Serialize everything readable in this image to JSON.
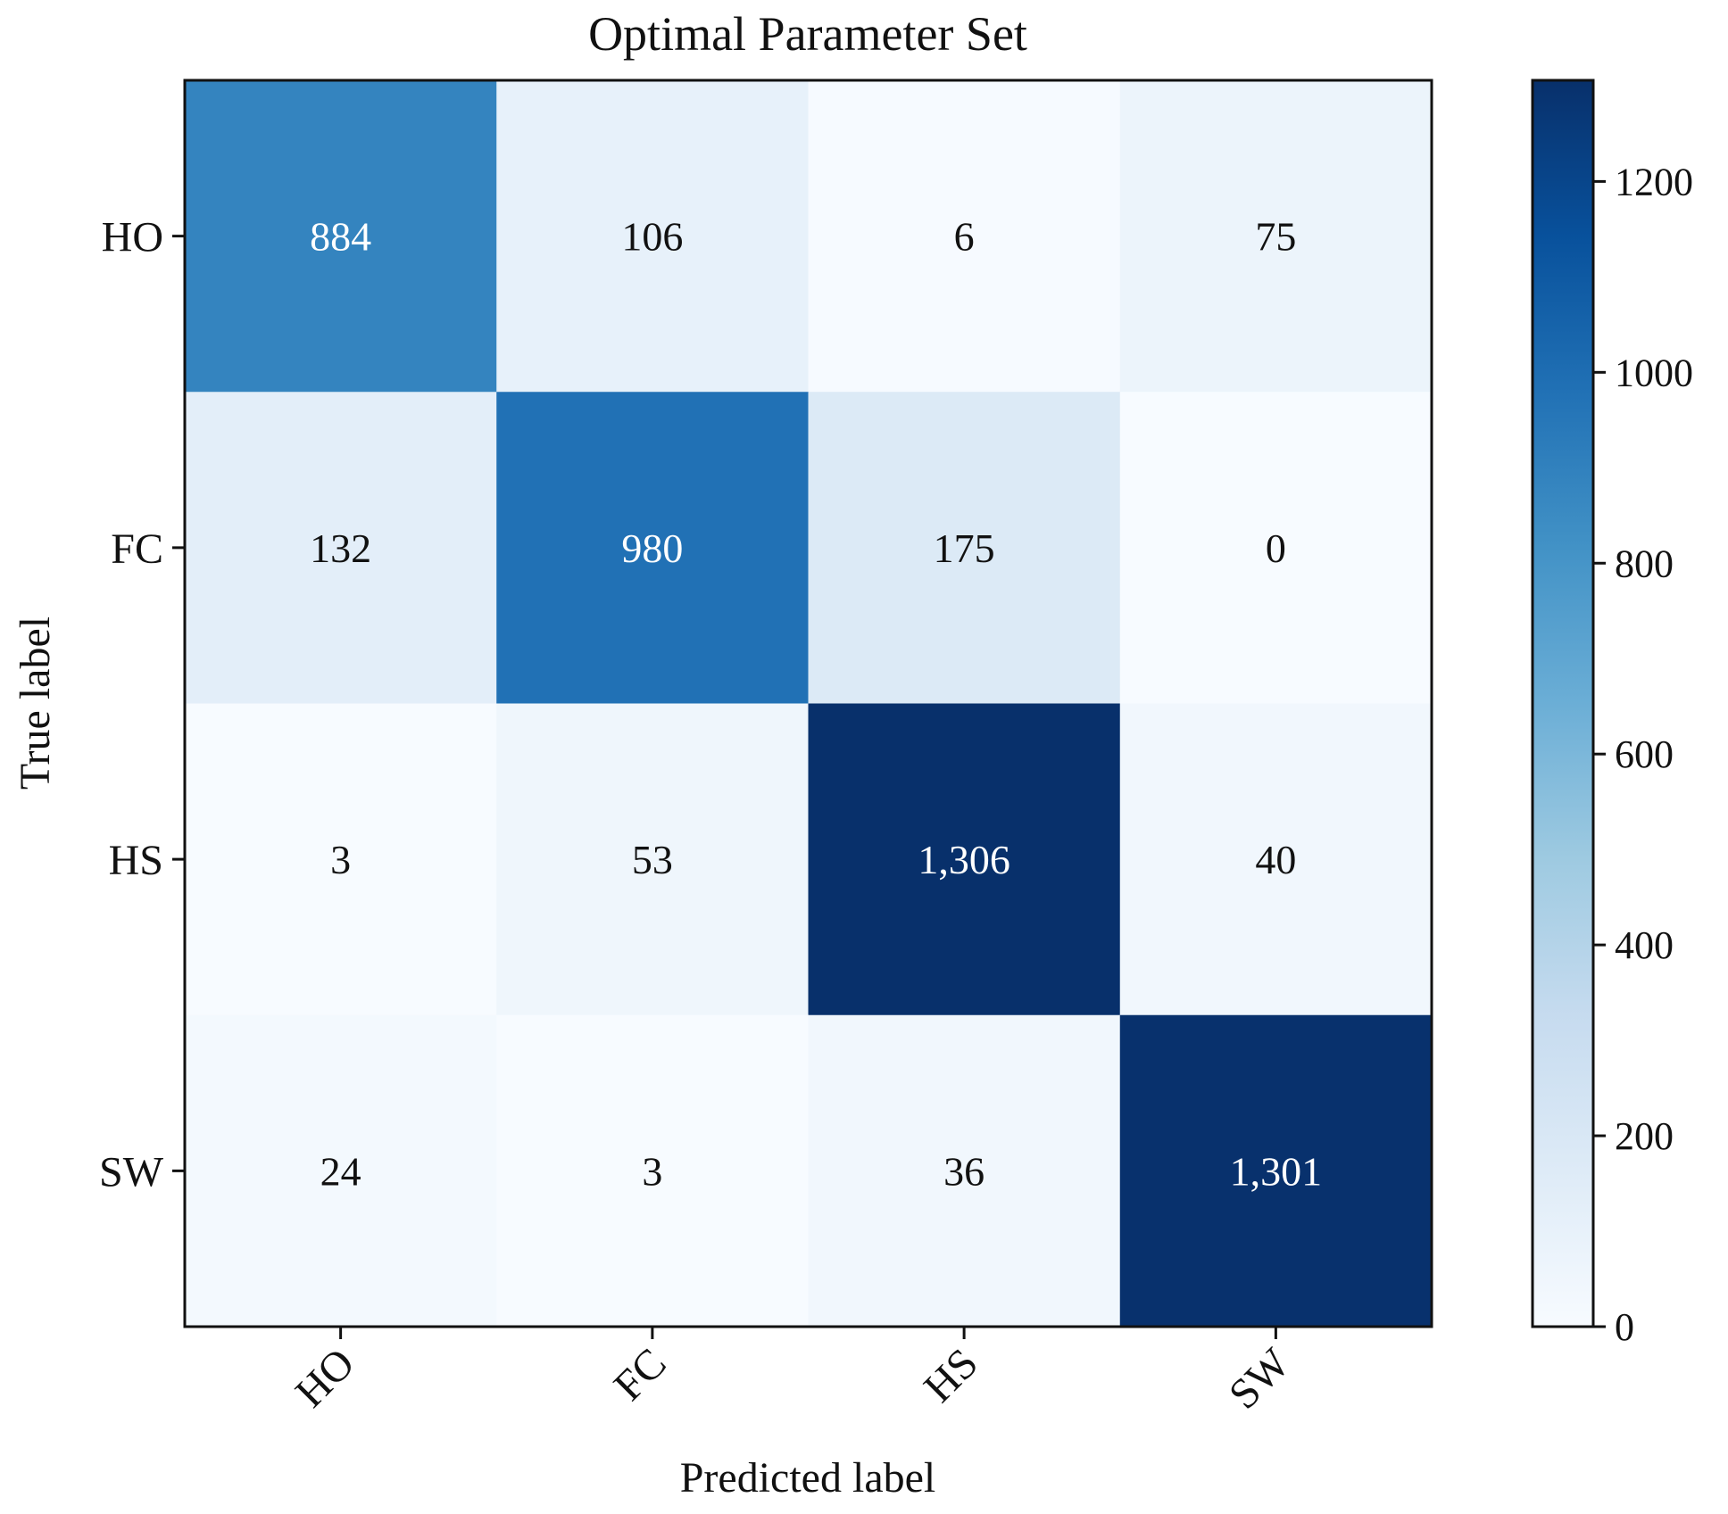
{
  "chart_data": {
    "type": "heatmap",
    "title": "Optimal Parameter Set",
    "xlabel": "Predicted label",
    "ylabel": "True label",
    "x_categories": [
      "HO",
      "FC",
      "HS",
      "SW"
    ],
    "y_categories": [
      "HO",
      "FC",
      "HS",
      "SW"
    ],
    "matrix": [
      [
        884,
        106,
        6,
        75
      ],
      [
        132,
        980,
        175,
        0
      ],
      [
        3,
        53,
        1306,
        40
      ],
      [
        24,
        3,
        36,
        1301
      ]
    ],
    "cell_labels": [
      [
        "884",
        "106",
        "6",
        "75"
      ],
      [
        "132",
        "980",
        "175",
        "0"
      ],
      [
        "3",
        "53",
        "1,306",
        "40"
      ],
      [
        "24",
        "3",
        "36",
        "1,301"
      ]
    ],
    "colorbar": {
      "colormap": "Blues",
      "range": [
        0,
        1306
      ],
      "ticks": [
        0,
        200,
        400,
        600,
        800,
        1000,
        1200
      ]
    },
    "text_colors": {
      "light": "#ffffff",
      "dark": "#111111"
    }
  }
}
